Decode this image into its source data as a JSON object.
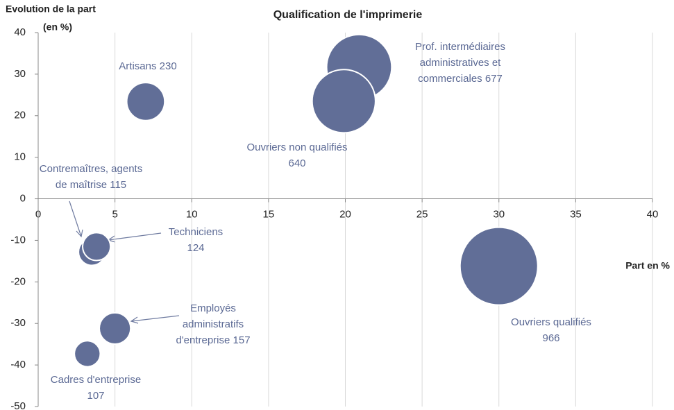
{
  "chart_data": {
    "type": "bubble",
    "title": "Qualification de l'imprimerie",
    "y_label": [
      "Evolution de la part",
      "(en %)"
    ],
    "x_label": "Part en %",
    "x": [
      7.0,
      20.9,
      19.9,
      3.5,
      3.8,
      5.0,
      3.2,
      30.0
    ],
    "y": [
      23.4,
      31.7,
      23.5,
      -12.8,
      -11.5,
      -31.2,
      -37.3,
      -16.2
    ],
    "sizes": [
      230,
      677,
      640,
      115,
      124,
      157,
      107,
      966
    ],
    "value_labels": [
      [
        "Artisans 230"
      ],
      [
        "Prof. intermédiaires",
        "administratives et",
        "commerciales 677"
      ],
      [
        "Ouvriers non qualifiés",
        "640"
      ],
      [
        "Contremaîtres, agents",
        "de maîtrise 115"
      ],
      [
        "Techniciens",
        "124"
      ],
      [
        "Employés",
        "administratifs",
        "d'entreprise 157"
      ],
      [
        "Cadres d'entreprise",
        "107"
      ],
      [
        "Ouvriers qualifiés",
        "966"
      ]
    ],
    "color": "#616e97",
    "xlim": [
      0,
      40
    ],
    "xticks": [
      0,
      5,
      10,
      15,
      20,
      25,
      30,
      35,
      40
    ],
    "ylim": [
      -50,
      40
    ],
    "yticks": [
      -50,
      -40,
      -30,
      -20,
      -10,
      0,
      10,
      20,
      30,
      40
    ],
    "grid": true
  }
}
